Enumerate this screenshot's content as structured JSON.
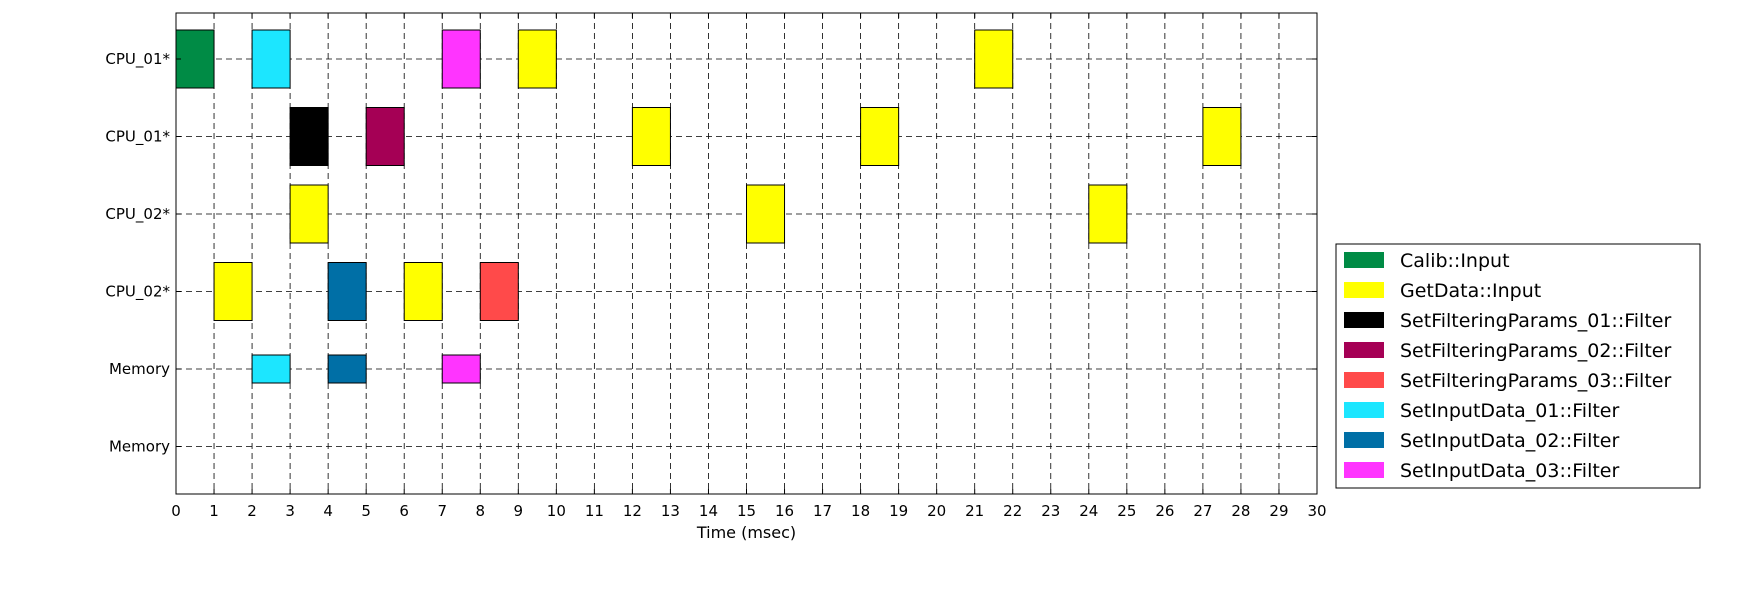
{
  "chart_data": {
    "type": "gantt",
    "title": "",
    "xlabel": "Time (msec)",
    "ylabel": "",
    "xlim": [
      0,
      30
    ],
    "x_ticks": [
      0,
      1,
      2,
      3,
      4,
      5,
      6,
      7,
      8,
      9,
      10,
      11,
      12,
      13,
      14,
      15,
      16,
      17,
      18,
      19,
      20,
      21,
      22,
      23,
      24,
      25,
      26,
      27,
      28,
      29,
      30
    ],
    "grid": true,
    "legend_position": "right",
    "rows": [
      "CPU_01*",
      "CPU_01*",
      "CPU_02*",
      "CPU_02*",
      "Memory",
      "Memory"
    ],
    "categories": [
      {
        "name": "Calib::Input",
        "color": "#008B45"
      },
      {
        "name": "GetData::Input",
        "color": "#FFFF00"
      },
      {
        "name": "SetFilteringParams_01::Filter",
        "color": "#000000"
      },
      {
        "name": "SetFilteringParams_02::Filter",
        "color": "#A50055"
      },
      {
        "name": "SetFilteringParams_03::Filter",
        "color": "#FF4A4A"
      },
      {
        "name": "SetInputData_01::Filter",
        "color": "#1CE6FF"
      },
      {
        "name": "SetInputData_02::Filter",
        "color": "#006FA6"
      },
      {
        "name": "SetInputData_03::Filter",
        "color": "#FF34FF"
      }
    ],
    "tasks": [
      {
        "row": 0,
        "start": 0,
        "end": 1,
        "category": 0
      },
      {
        "row": 0,
        "start": 2,
        "end": 3,
        "category": 5
      },
      {
        "row": 0,
        "start": 7,
        "end": 8,
        "category": 7
      },
      {
        "row": 0,
        "start": 9,
        "end": 10,
        "category": 1
      },
      {
        "row": 0,
        "start": 21,
        "end": 22,
        "category": 1
      },
      {
        "row": 1,
        "start": 3,
        "end": 4,
        "category": 2
      },
      {
        "row": 1,
        "start": 5,
        "end": 6,
        "category": 3
      },
      {
        "row": 1,
        "start": 12,
        "end": 13,
        "category": 1
      },
      {
        "row": 1,
        "start": 18,
        "end": 19,
        "category": 1
      },
      {
        "row": 1,
        "start": 27,
        "end": 28,
        "category": 1
      },
      {
        "row": 2,
        "start": 3,
        "end": 4,
        "category": 1
      },
      {
        "row": 2,
        "start": 15,
        "end": 16,
        "category": 1
      },
      {
        "row": 2,
        "start": 24,
        "end": 25,
        "category": 1
      },
      {
        "row": 3,
        "start": 1,
        "end": 2,
        "category": 1
      },
      {
        "row": 3,
        "start": 4,
        "end": 5,
        "category": 6
      },
      {
        "row": 3,
        "start": 6,
        "end": 7,
        "category": 1
      },
      {
        "row": 3,
        "start": 8,
        "end": 9,
        "category": 4
      },
      {
        "row": 4,
        "start": 2,
        "end": 3,
        "category": 5
      },
      {
        "row": 4,
        "start": 4,
        "end": 5,
        "category": 6
      },
      {
        "row": 4,
        "start": 7,
        "end": 8,
        "category": 7
      }
    ]
  }
}
